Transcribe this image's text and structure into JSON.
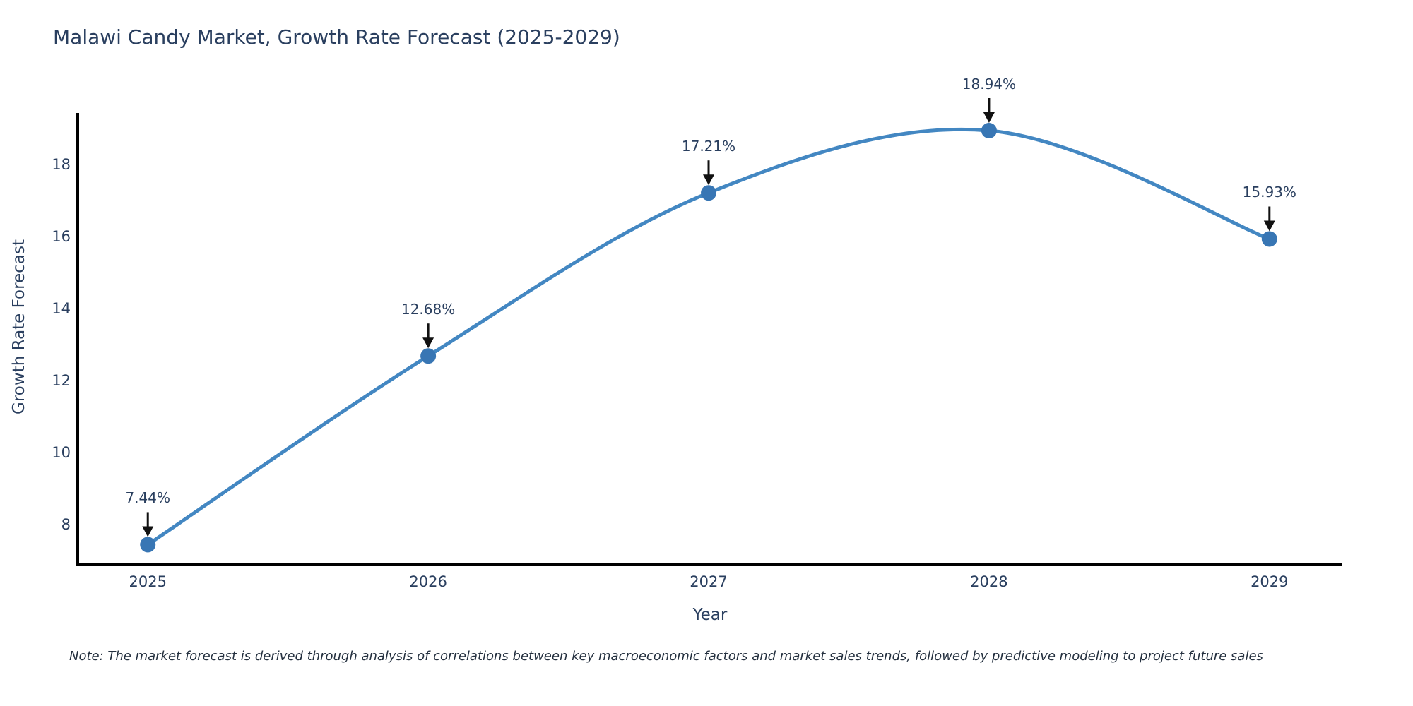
{
  "title": "Malawi Candy Market, Growth Rate Forecast (2025-2029)",
  "note": "Note: The market forecast is derived through analysis of correlations between key macroeconomic factors and market sales trends, followed by predictive modeling to project future sales",
  "colors": {
    "line": "#4387c2",
    "marker": "#3876b4",
    "axis": "#000000",
    "arrow": "#111111",
    "text": "#2a3f5f",
    "background": "#ffffff"
  },
  "chart_data": {
    "type": "line",
    "line_shape": "spline",
    "x": [
      2025,
      2026,
      2027,
      2028,
      2029
    ],
    "values": [
      7.44,
      12.68,
      17.21,
      18.94,
      15.93
    ],
    "point_labels": [
      "7.44%",
      "12.68%",
      "17.21%",
      "18.94%",
      "15.93%"
    ],
    "title": "Malawi Candy Market, Growth Rate Forecast (2025-2029)",
    "xlabel": "Year",
    "ylabel": "Growth Rate Forecast",
    "xticks": [
      "2025",
      "2026",
      "2027",
      "2028",
      "2029"
    ],
    "yticks": [
      8,
      10,
      12,
      14,
      16,
      18
    ],
    "xlim": [
      2024.75,
      2029.26
    ],
    "ylim": [
      6.88,
      19.43
    ],
    "grid": false,
    "legend": "none",
    "annotations": "value labels with down arrows above each point"
  }
}
